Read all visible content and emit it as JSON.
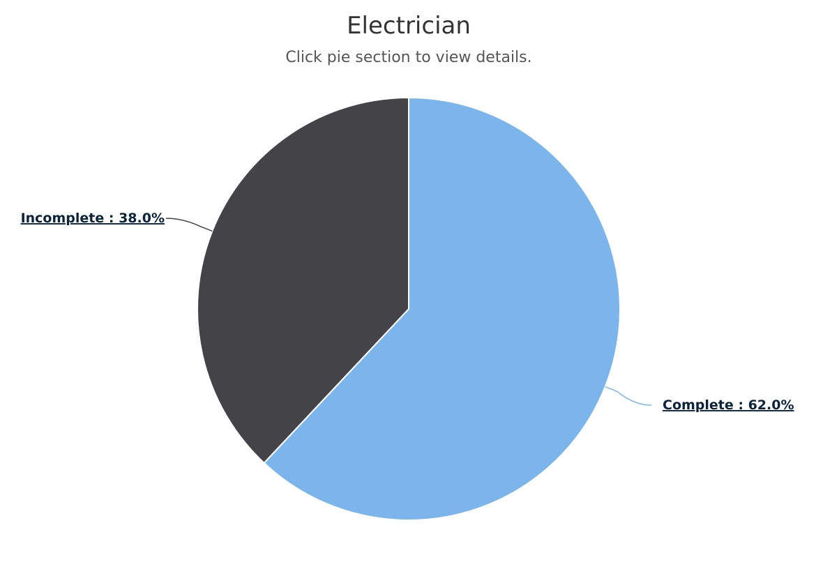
{
  "chart_data": {
    "type": "pie",
    "title": "Electrician",
    "subtitle": "Click pie section to view details.",
    "slices": [
      {
        "name": "Complete",
        "value": 62.0,
        "label": "Complete : 62.0%",
        "color": "#7cb5ec"
      },
      {
        "name": "Incomplete",
        "value": 38.0,
        "label": "Incomplete : 38.0%",
        "color": "#434348"
      }
    ],
    "legend": "none"
  }
}
